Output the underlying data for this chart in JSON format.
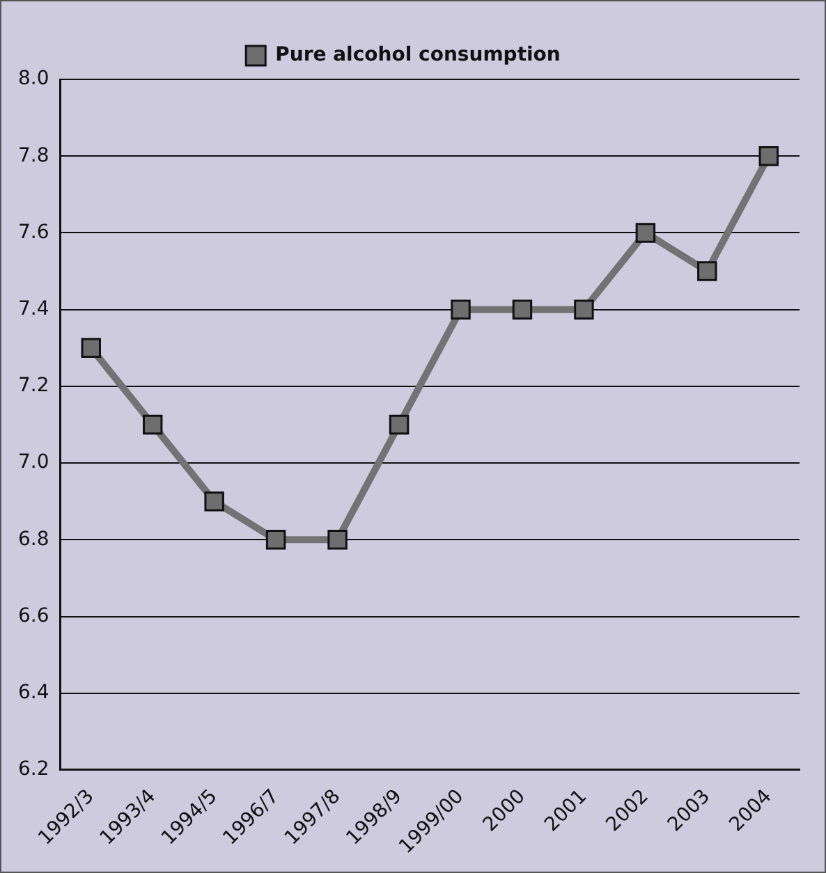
{
  "chart_data": {
    "type": "line",
    "categories": [
      "1992/3",
      "1993/4",
      "1994/5",
      "1996/7",
      "1997/8",
      "1998/9",
      "1999/00",
      "2000",
      "2001",
      "2002",
      "2003",
      "2004"
    ],
    "series": [
      {
        "name": "Pure alcohol consumption",
        "color": "#737373",
        "values": [
          7.3,
          7.1,
          6.9,
          6.8,
          6.8,
          7.1,
          7.4,
          7.4,
          7.4,
          7.6,
          7.5,
          7.8
        ]
      }
    ],
    "ylim": [
      6.2,
      8.0
    ],
    "yticks": [
      {
        "value": 6.2,
        "label": "6.2"
      },
      {
        "value": 6.4,
        "label": "6.4"
      },
      {
        "value": 6.6,
        "label": "6.6"
      },
      {
        "value": 6.8,
        "label": "6.8"
      },
      {
        "value": 7,
        "label": "7.0"
      },
      {
        "value": 7.2,
        "label": "7.2"
      },
      {
        "value": 7.4,
        "label": "7.4"
      },
      {
        "value": 7.6,
        "label": "7.6"
      },
      {
        "value": 7.8,
        "label": "7.8"
      },
      {
        "value": 8,
        "label": "8.0"
      }
    ],
    "grid": "y",
    "legend": "top",
    "marker": "square",
    "line_style": "solid"
  }
}
